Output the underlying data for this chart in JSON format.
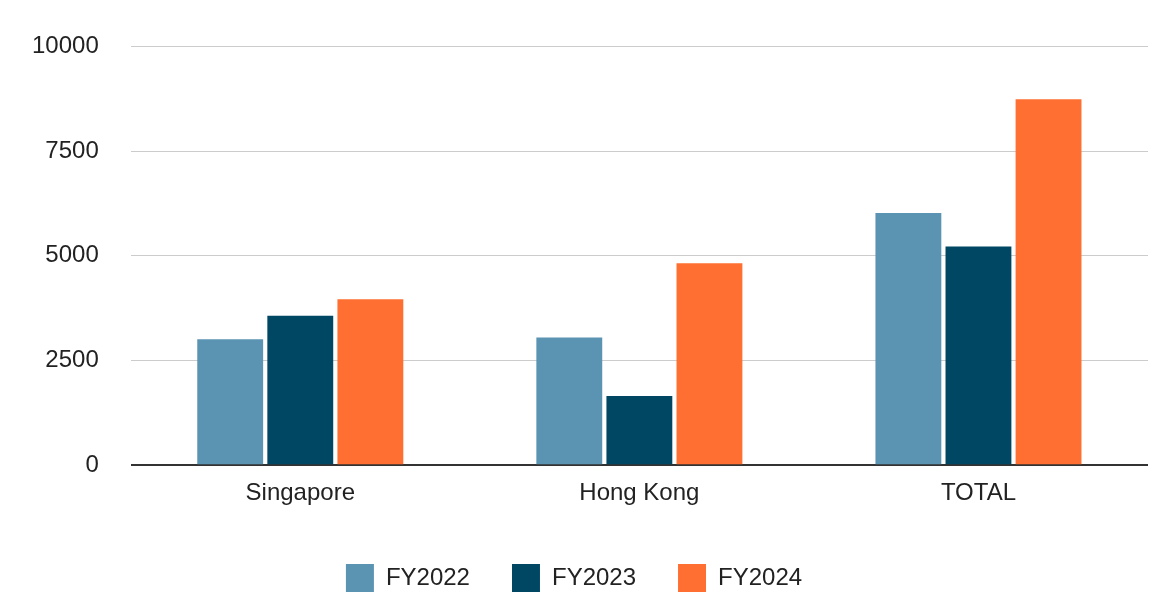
{
  "chart_data": {
    "type": "bar",
    "categories": [
      "Singapore",
      "Hong Kong",
      "TOTAL"
    ],
    "series": [
      {
        "name": "FY2022",
        "color": "#5b93b3",
        "values": [
          3010,
          3050,
          6020
        ]
      },
      {
        "name": "FY2023",
        "color": "#004763",
        "values": [
          3570,
          1650,
          5220
        ]
      },
      {
        "name": "FY2024",
        "color": "#ff6f31",
        "values": [
          3960,
          4820,
          8740
        ]
      }
    ],
    "ylim": [
      0,
      10000
    ],
    "yticks": [
      0,
      2500,
      5000,
      7500,
      10000
    ],
    "grid": "y",
    "legend": "bottom"
  }
}
